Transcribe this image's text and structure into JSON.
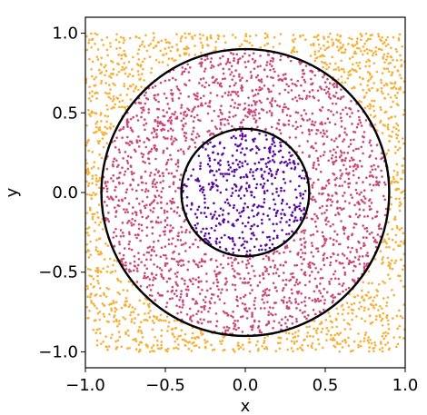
{
  "chart_data": {
    "type": "scatter",
    "title": "",
    "xlabel": "x",
    "ylabel": "y",
    "xlim": [
      -1.0,
      1.0
    ],
    "ylim": [
      -1.1,
      1.1
    ],
    "xticks": [
      -1.0,
      -0.5,
      0.0,
      0.5,
      1.0
    ],
    "yticks": [
      -1.0,
      -0.5,
      0.0,
      0.5,
      1.0
    ],
    "xtick_labels": [
      "−1.0",
      "−0.5",
      "0.0",
      "0.5",
      "1.0"
    ],
    "ytick_labels": [
      "−1.0",
      "−0.5",
      "0.0",
      "0.5",
      "1.0"
    ],
    "grid": false,
    "legend": "none",
    "sampling_domain": {
      "x": [
        -1.0,
        1.0
      ],
      "y": [
        -1.0,
        1.0
      ]
    },
    "regions": [
      {
        "condition": "r < 0.4",
        "color": "#5b0aa6",
        "approx_points": 500
      },
      {
        "condition": "0.4 <= r < 0.9",
        "color": "#cc4778",
        "approx_points": 2000
      },
      {
        "condition": "r >= 0.9",
        "color": "#f7b034",
        "approx_points": 1400
      }
    ],
    "circles": [
      {
        "center": [
          0.0,
          0.0
        ],
        "radius": 0.4,
        "color": "#000000"
      },
      {
        "center": [
          0.0,
          0.0
        ],
        "radius": 0.9,
        "color": "#000000"
      }
    ]
  }
}
